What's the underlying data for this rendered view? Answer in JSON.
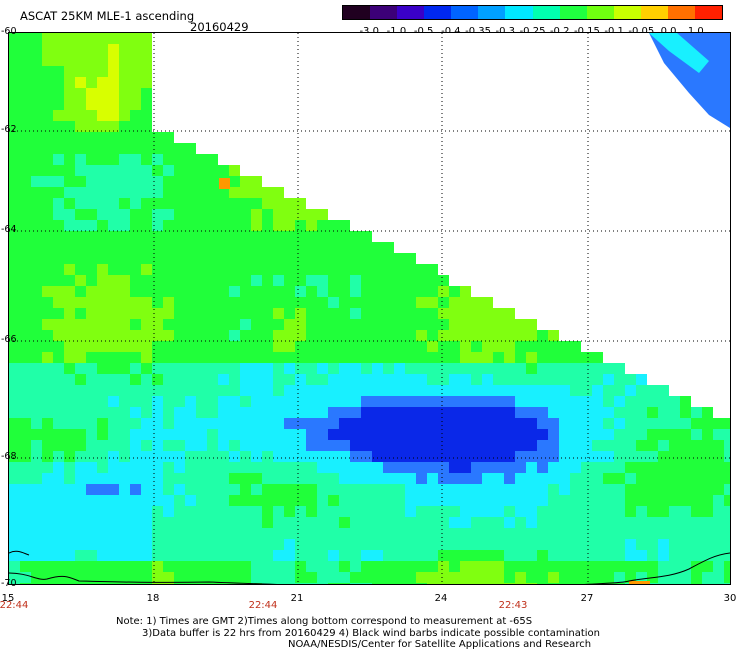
{
  "header": {
    "title": "ASCAT 25KM MLE-1 ascending",
    "date": "20160429"
  },
  "colorbar": {
    "labels": [
      "-3.0",
      "-1.0",
      "-0.5",
      "-0.4",
      "-0.35",
      "-0.3",
      "-0.25",
      "-0.2",
      "-0.15",
      "-0.1",
      "-0.05",
      "0.0",
      "1.0"
    ],
    "colors": [
      "#200020",
      "#3c0078",
      "#3a00c8",
      "#0028f0",
      "#0064ff",
      "#00a0ff",
      "#00e8ff",
      "#00ffb0",
      "#20ff40",
      "#70ff10",
      "#c8ff00",
      "#ffd000",
      "#ff7000",
      "#ff2000"
    ]
  },
  "map": {
    "lat_labels": [
      "-60",
      "-62",
      "-64",
      "-66",
      "-68",
      "-70"
    ],
    "lon_labels": [
      "15",
      "18",
      "21",
      "24",
      "27",
      "30"
    ],
    "time_labels": [
      "22:44",
      "22:44",
      "22:43"
    ],
    "palette": {
      "deep_blue": "#0a28e8",
      "blue": "#2a78ff",
      "cyan": "#18f0ff",
      "aqua": "#20ffa8",
      "green": "#20ff3a",
      "lime": "#80ff10",
      "yellow": "#d8ff00",
      "orange": "#ff9800",
      "coast": "#000000"
    }
  },
  "notes": {
    "line1": "Note: 1) Times are GMT 2)Times along bottom correspond to measurement at -65S",
    "line2": "3)Data buffer is 22 hrs from 20160429 4) Black wind barbs indicate possible contamination",
    "line3": "NOAA/NESDIS/Center for Satellite Applications and Research"
  }
}
